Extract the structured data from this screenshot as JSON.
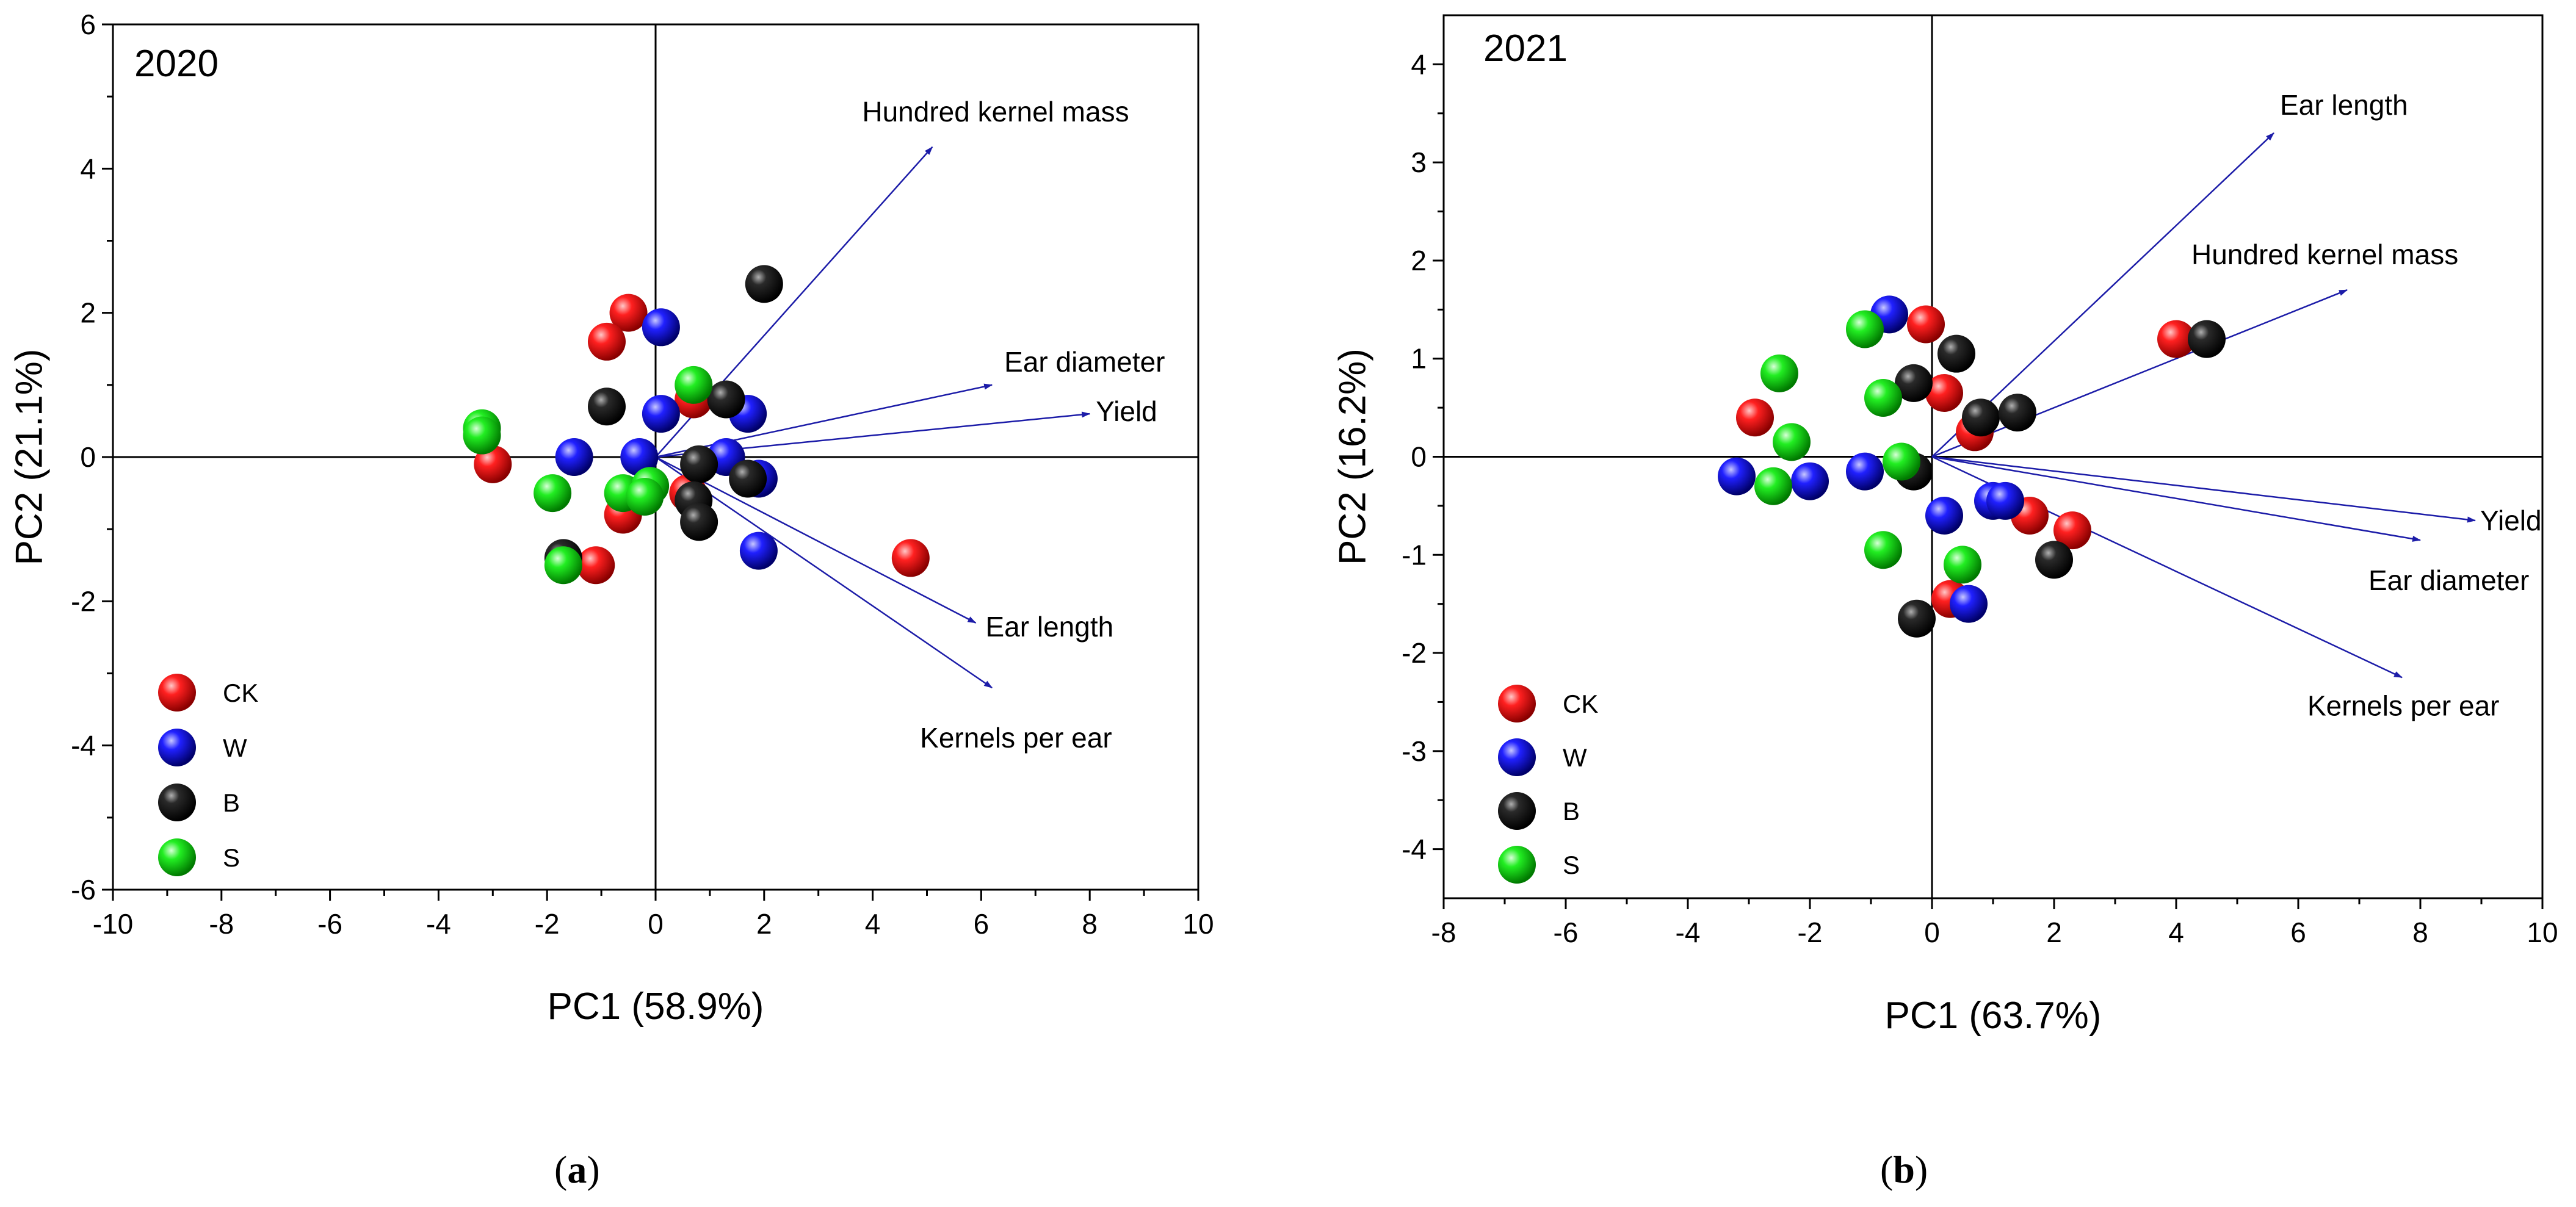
{
  "colors": {
    "CK": "#ff0000",
    "W": "#0000ff",
    "B": "#000000",
    "S": "#00ee00",
    "arrow": "#1c1ca8",
    "axis": "#000000"
  },
  "chart_data": [
    {
      "type": "scatter",
      "panel": "a",
      "title": "2020",
      "xlabel": "PC1 (58.9%)",
      "ylabel": "PC2 (21.1%)",
      "xlim": [
        -10,
        10
      ],
      "ylim": [
        -6,
        6
      ],
      "xticks": [
        -10,
        -8,
        -6,
        -4,
        -2,
        0,
        2,
        4,
        6,
        8,
        10
      ],
      "yticks": [
        -6,
        -4,
        -2,
        0,
        2,
        4,
        6
      ],
      "grid": false,
      "legend_position": "bottom-left",
      "series": [
        {
          "name": "CK",
          "color": "#ff0000",
          "points": [
            [
              -3.0,
              -0.1
            ],
            [
              -0.5,
              2.0
            ],
            [
              -0.9,
              1.6
            ],
            [
              -0.6,
              -0.8
            ],
            [
              -1.1,
              -1.5
            ],
            [
              4.7,
              -1.4
            ],
            [
              0.7,
              0.8
            ],
            [
              0.6,
              -0.5
            ]
          ]
        },
        {
          "name": "W",
          "color": "#0000ff",
          "points": [
            [
              0.1,
              1.8
            ],
            [
              0.1,
              0.6
            ],
            [
              -1.5,
              0.0
            ],
            [
              -0.3,
              0.0
            ],
            [
              1.7,
              0.6
            ],
            [
              1.3,
              0.0
            ],
            [
              1.9,
              -0.3
            ],
            [
              1.9,
              -1.3
            ]
          ]
        },
        {
          "name": "B",
          "color": "#000000",
          "points": [
            [
              2.0,
              2.4
            ],
            [
              -0.9,
              0.7
            ],
            [
              1.3,
              0.8
            ],
            [
              0.8,
              -0.1
            ],
            [
              1.7,
              -0.3
            ],
            [
              0.7,
              -0.6
            ],
            [
              0.8,
              -0.9
            ],
            [
              -1.7,
              -1.4
            ]
          ]
        },
        {
          "name": "S",
          "color": "#00ee00",
          "points": [
            [
              -3.2,
              0.4
            ],
            [
              -3.2,
              0.3
            ],
            [
              0.7,
              1.0
            ],
            [
              -1.9,
              -0.5
            ],
            [
              -0.6,
              -0.5
            ],
            [
              -0.1,
              -0.4
            ],
            [
              -1.7,
              -1.5
            ],
            [
              -0.2,
              -0.55
            ]
          ]
        }
      ],
      "vectors": [
        {
          "label": "Hundred kernel mass",
          "x": 5.1,
          "y": 4.3
        },
        {
          "label": "Ear diameter",
          "x": 6.2,
          "y": 1.0
        },
        {
          "label": "Yield",
          "x": 8.0,
          "y": 0.6
        },
        {
          "label": "Ear length",
          "x": 5.9,
          "y": -2.3
        },
        {
          "label": "Kernels per ear",
          "x": 6.2,
          "y": -3.2
        }
      ]
    },
    {
      "type": "scatter",
      "panel": "b",
      "title": "2021",
      "xlabel": "PC1 (63.7%)",
      "ylabel": "PC2 (16.2%)",
      "xlim": [
        -8,
        10
      ],
      "ylim": [
        -4.5,
        4.5
      ],
      "xticks": [
        -8,
        -6,
        -4,
        -2,
        0,
        2,
        4,
        6,
        8,
        10
      ],
      "yticks": [
        -4,
        -3,
        -2,
        -1,
        0,
        1,
        2,
        3,
        4
      ],
      "grid": false,
      "legend_position": "bottom-left",
      "series": [
        {
          "name": "CK",
          "color": "#ff0000",
          "points": [
            [
              -0.1,
              1.35
            ],
            [
              -2.9,
              0.4
            ],
            [
              0.2,
              0.65
            ],
            [
              0.7,
              0.25
            ],
            [
              4.0,
              1.2
            ],
            [
              1.6,
              -0.6
            ],
            [
              2.3,
              -0.75
            ],
            [
              0.3,
              -1.45
            ]
          ]
        },
        {
          "name": "W",
          "color": "#0000ff",
          "points": [
            [
              -0.7,
              1.45
            ],
            [
              -3.2,
              -0.2
            ],
            [
              -2.0,
              -0.25
            ],
            [
              -1.1,
              -0.15
            ],
            [
              0.2,
              -0.6
            ],
            [
              1.0,
              -0.45
            ],
            [
              1.2,
              -0.45
            ],
            [
              0.6,
              -1.5
            ]
          ]
        },
        {
          "name": "B",
          "color": "#000000",
          "points": [
            [
              -0.3,
              0.75
            ],
            [
              0.4,
              1.05
            ],
            [
              0.8,
              0.4
            ],
            [
              1.4,
              0.45
            ],
            [
              4.5,
              1.2
            ],
            [
              -0.3,
              -0.15
            ],
            [
              2.0,
              -1.05
            ],
            [
              -0.25,
              -1.65
            ]
          ]
        },
        {
          "name": "S",
          "color": "#00ee00",
          "points": [
            [
              -1.1,
              1.3
            ],
            [
              -2.5,
              0.85
            ],
            [
              -0.8,
              0.6
            ],
            [
              -2.3,
              0.15
            ],
            [
              -2.6,
              -0.3
            ],
            [
              -0.5,
              -0.05
            ],
            [
              -0.8,
              -0.95
            ],
            [
              0.5,
              -1.1
            ]
          ]
        }
      ],
      "vectors": [
        {
          "label": "Ear length",
          "x": 5.6,
          "y": 3.3
        },
        {
          "label": "Hundred kernel mass",
          "x": 6.8,
          "y": 1.7
        },
        {
          "label": "Yield",
          "x": 8.9,
          "y": -0.65
        },
        {
          "label": "Ear diameter",
          "x": 8.0,
          "y": -0.85
        },
        {
          "label": "Kernels per ear",
          "x": 7.7,
          "y": -2.25
        }
      ]
    }
  ],
  "captions": {
    "a": "a",
    "b": "b"
  }
}
